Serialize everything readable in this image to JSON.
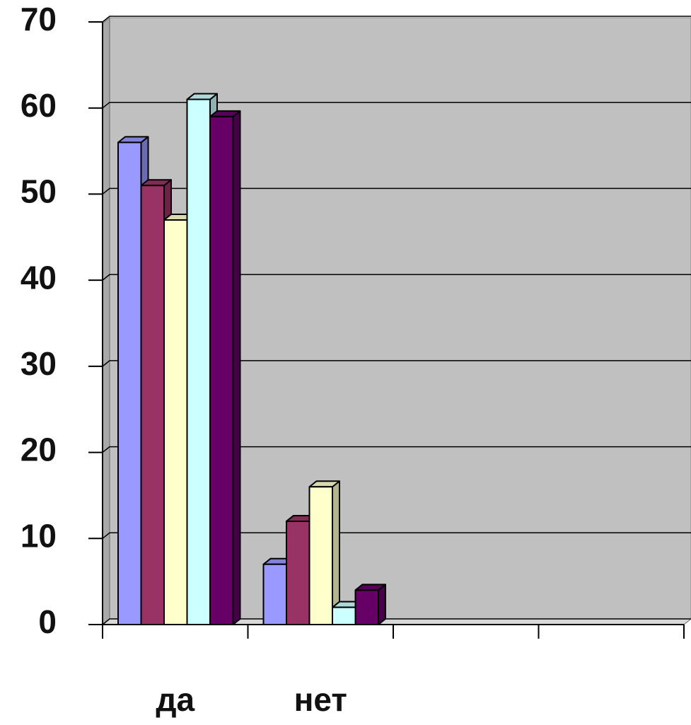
{
  "chart_data": {
    "type": "bar3d",
    "categories": [
      "да",
      "нет",
      null,
      null
    ],
    "series": [
      {
        "color": "#9999ff",
        "values": [
          56,
          7,
          null,
          null
        ]
      },
      {
        "color": "#993366",
        "values": [
          51,
          12,
          null,
          null
        ]
      },
      {
        "color": "#ffffcc",
        "values": [
          47,
          16,
          null,
          null
        ]
      },
      {
        "color": "#ccffff",
        "values": [
          61,
          2,
          null,
          null
        ]
      },
      {
        "color": "#660066",
        "values": [
          59,
          4,
          null,
          null
        ]
      }
    ],
    "ylim": [
      0,
      70
    ],
    "yticks": [
      0,
      10,
      20,
      30,
      40,
      50,
      60,
      70
    ],
    "grid": true
  }
}
